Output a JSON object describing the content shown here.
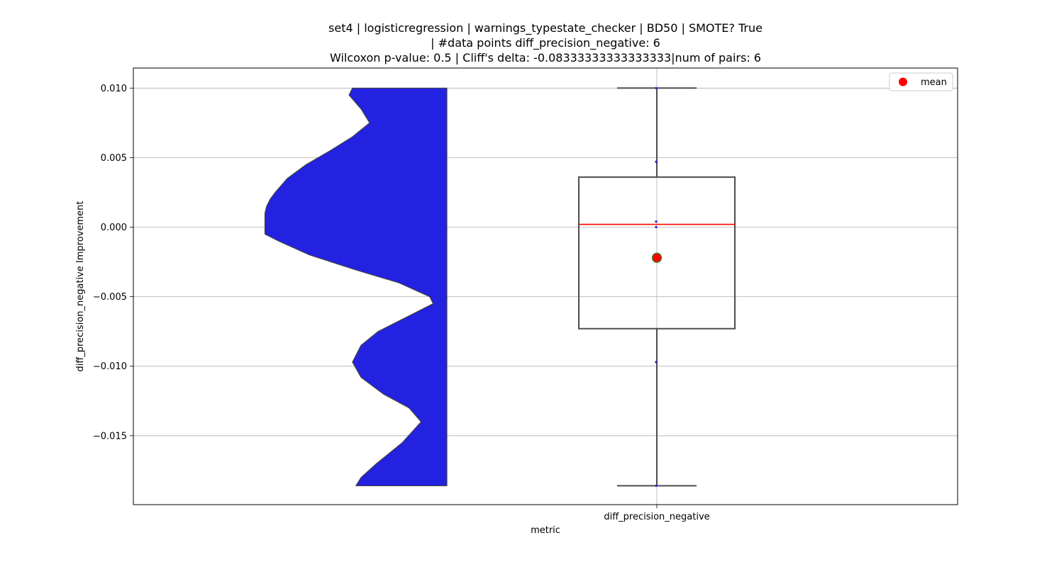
{
  "chart_data": {
    "type": "violin+box",
    "title_lines": [
      "set4 | logisticregression | warnings_typestate_checker | BD50 | SMOTE? True",
      "| #data points diff_precision_negative: 6",
      "Wilcoxon p-value: 0.5 | Cliff's delta: -0.08333333333333333|num of pairs: 6"
    ],
    "xlabel": "metric",
    "ylabel": "diff_precision_negative Improvement",
    "categories": [
      "diff_precision_negative"
    ],
    "ylim": [
      -0.0195,
      0.0115
    ],
    "yticks": [
      0.01,
      0.005,
      0.0,
      -0.005,
      -0.01,
      -0.015
    ],
    "ytick_labels": [
      "0.010",
      "0.005",
      "0.000",
      "−0.005",
      "−0.010",
      "−0.015"
    ],
    "grid": true,
    "legend": {
      "placement": "top-right",
      "entries": [
        {
          "label": "mean",
          "color": "#ff0000"
        }
      ]
    },
    "points": [
      0.01,
      0.0047,
      0.0004,
      0.0,
      -0.0097,
      -0.0186
    ],
    "box": {
      "whisker_low": -0.0186,
      "q1": -0.0073,
      "median": 0.0002,
      "q3": 0.0036,
      "whisker_high": 0.01,
      "mean": -0.0022
    },
    "violin": {
      "color": "#2222e0",
      "density_profile": [
        [
          0.01,
          0.55
        ],
        [
          0.0095,
          0.57
        ],
        [
          0.0085,
          0.5
        ],
        [
          0.0075,
          0.45
        ],
        [
          0.0065,
          0.55
        ],
        [
          0.0055,
          0.68
        ],
        [
          0.0045,
          0.82
        ],
        [
          0.0035,
          0.93
        ],
        [
          0.0025,
          1.0
        ],
        [
          0.002,
          1.03
        ],
        [
          0.0015,
          1.05
        ],
        [
          0.001,
          1.06
        ],
        [
          0.0005,
          1.06
        ],
        [
          0.0,
          1.06
        ],
        [
          -0.0005,
          1.06
        ],
        [
          -0.001,
          0.98
        ],
        [
          -0.002,
          0.8
        ],
        [
          -0.003,
          0.55
        ],
        [
          -0.004,
          0.28
        ],
        [
          -0.005,
          0.1
        ],
        [
          -0.0055,
          0.08
        ],
        [
          -0.0065,
          0.24
        ],
        [
          -0.0075,
          0.4
        ],
        [
          -0.0085,
          0.5
        ],
        [
          -0.0097,
          0.55
        ],
        [
          -0.0108,
          0.5
        ],
        [
          -0.012,
          0.37
        ],
        [
          -0.013,
          0.22
        ],
        [
          -0.014,
          0.15
        ],
        [
          -0.0155,
          0.26
        ],
        [
          -0.017,
          0.41
        ],
        [
          -0.018,
          0.5
        ],
        [
          -0.0186,
          0.53
        ]
      ]
    }
  }
}
